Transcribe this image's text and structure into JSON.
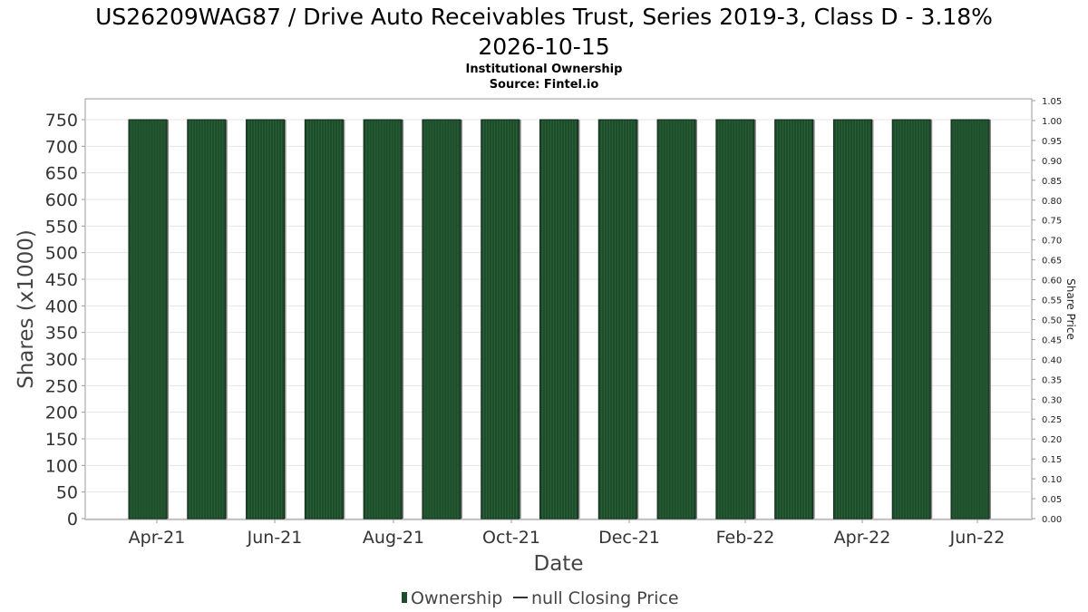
{
  "chart_data": {
    "type": "bar",
    "title": "US26209WAG87 / Drive Auto Receivables Trust, Series 2019-3, Class D - 3.18% 2026-10-15",
    "title_lines": [
      "US26209WAG87 / Drive Auto Receivables Trust, Series 2019-3, Class D - 3.18%",
      "2026-10-15"
    ],
    "subtitle": "Institutional Ownership",
    "source": "Source: Fintel.io",
    "xlabel": "Date",
    "ylabel": "Shares (x1000)",
    "y2label": "Share Price",
    "ylim": [
      0,
      790
    ],
    "y2lim": [
      0,
      1.05
    ],
    "yticks": [
      "0",
      "50",
      "100",
      "150",
      "200",
      "250",
      "300",
      "350",
      "400",
      "450",
      "500",
      "550",
      "600",
      "650",
      "700",
      "750"
    ],
    "y2ticks": [
      "0.00",
      "0.05",
      "0.10",
      "0.15",
      "0.20",
      "0.25",
      "0.30",
      "0.35",
      "0.40",
      "0.45",
      "0.50",
      "0.55",
      "0.60",
      "0.65",
      "0.70",
      "0.75",
      "0.80",
      "0.85",
      "0.90",
      "0.95",
      "1.00",
      "1.05"
    ],
    "xticks": [
      "Apr-21",
      "Jun-21",
      "Aug-21",
      "Oct-21",
      "Dec-21",
      "Feb-22",
      "Apr-22",
      "Jun-22"
    ],
    "grid": true,
    "legend_position": "bottom",
    "series": [
      {
        "name": "Ownership",
        "color": "#1e4d2b",
        "values": [
          750,
          750,
          750,
          750,
          750,
          750,
          750,
          750,
          750,
          750,
          750,
          750,
          750,
          750,
          750
        ]
      },
      {
        "name": "null Closing Price",
        "color": "#333333",
        "values": []
      }
    ]
  }
}
